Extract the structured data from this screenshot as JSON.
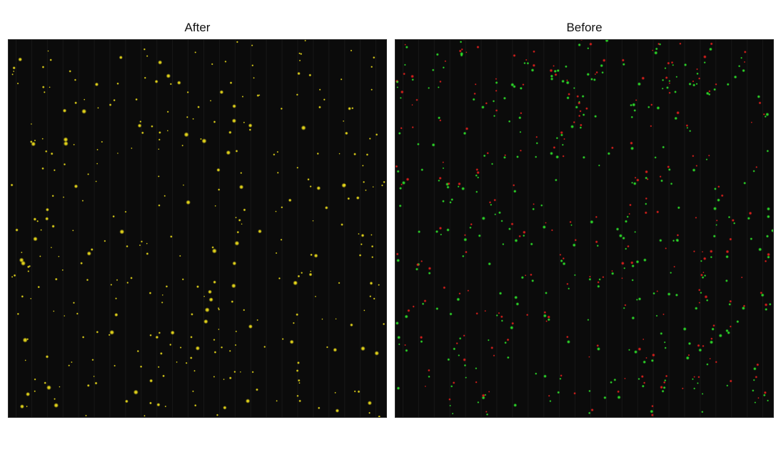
{
  "panels": {
    "after": {
      "title": "After",
      "dot_color": "#f2e21a",
      "background_color": "#0b0b0b"
    },
    "before": {
      "title": "Before",
      "dot_colors": [
        "#2ee62a",
        "#e8201c"
      ],
      "background_color": "#0b0b0b"
    }
  }
}
